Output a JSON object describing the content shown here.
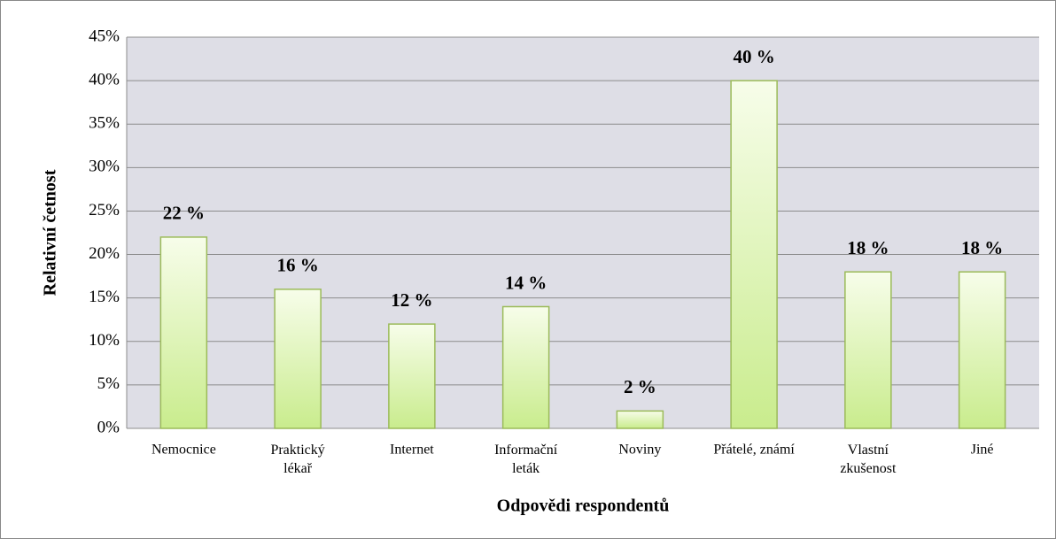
{
  "chart_data": {
    "type": "bar",
    "x_label": "Odpovědi respondentů",
    "y_label": "Relativní četnost",
    "categories": [
      "Nemocnice",
      "Praktický\nlékař",
      "Internet",
      "Informační\nleták",
      "Noviny",
      "Přátelé, známí",
      "Vlastní\nzkušenost",
      "Jiné"
    ],
    "values": [
      22,
      16,
      12,
      14,
      2,
      40,
      18,
      18
    ],
    "value_labels": [
      "22 %",
      "16 %",
      "12 %",
      "14 %",
      "2 %",
      "40 %",
      "18 %",
      "18 %"
    ],
    "color": "#9bbb59",
    "ylim": [
      0,
      45
    ],
    "yticks": [
      {
        "value": 0,
        "label": "0%"
      },
      {
        "value": 5,
        "label": "5%"
      },
      {
        "value": 10,
        "label": "10%"
      },
      {
        "value": 15,
        "label": "15%"
      },
      {
        "value": 20,
        "label": "20%"
      },
      {
        "value": 25,
        "label": "25%"
      },
      {
        "value": 30,
        "label": "30%"
      },
      {
        "value": 35,
        "label": "35%"
      },
      {
        "value": 40,
        "label": "40%"
      },
      {
        "value": 45,
        "label": "45%"
      }
    ],
    "grid": true
  }
}
